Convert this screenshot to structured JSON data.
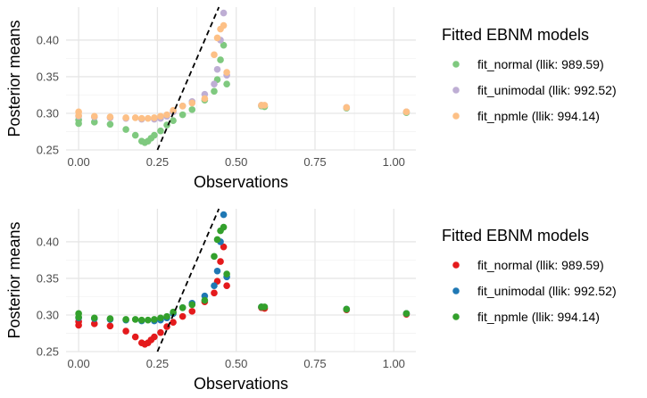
{
  "chart_data": [
    {
      "type": "scatter",
      "xlabel": "Observations",
      "ylabel": "Posterior means",
      "xlim": [
        -0.04,
        1.07
      ],
      "ylim": [
        0.25,
        0.445
      ],
      "x_ticks": [
        "0.00",
        "0.25",
        "0.50",
        "0.75",
        "1.00"
      ],
      "y_ticks": [
        "0.25",
        "0.30",
        "0.35",
        "0.40"
      ],
      "grid": true,
      "legend_title": "Fitted EBNM models",
      "legend_position": "right",
      "reference_line": {
        "style": "dashed",
        "color": "#000000",
        "x": [
          0.25,
          0.445
        ],
        "y": [
          0.25,
          0.445
        ]
      },
      "series": [
        {
          "name": "fit_normal (llik: 989.59)",
          "color": "#7fc97f",
          "x": [
            0.0,
            0.0,
            0.05,
            0.1,
            0.15,
            0.18,
            0.2,
            0.21,
            0.22,
            0.23,
            0.24,
            0.26,
            0.28,
            0.3,
            0.33,
            0.36,
            0.4,
            0.43,
            0.44,
            0.45,
            0.46,
            0.47,
            0.58,
            0.59,
            0.85,
            1.04
          ],
          "y": [
            0.286,
            0.291,
            0.288,
            0.285,
            0.278,
            0.27,
            0.262,
            0.26,
            0.262,
            0.266,
            0.27,
            0.276,
            0.284,
            0.29,
            0.298,
            0.305,
            0.318,
            0.33,
            0.346,
            0.373,
            0.393,
            0.34,
            0.31,
            0.309,
            0.307,
            0.301
          ]
        },
        {
          "name": "fit_unimodal (llik: 992.52)",
          "color": "#beaed4",
          "x": [
            0.0,
            0.05,
            0.1,
            0.15,
            0.2,
            0.24,
            0.26,
            0.28,
            0.3,
            0.33,
            0.36,
            0.4,
            0.43,
            0.44,
            0.45,
            0.46,
            0.47,
            0.58,
            0.85,
            1.04
          ],
          "y": [
            0.296,
            0.295,
            0.294,
            0.293,
            0.292,
            0.292,
            0.293,
            0.296,
            0.302,
            0.31,
            0.316,
            0.326,
            0.34,
            0.36,
            0.4,
            0.437,
            0.352,
            0.311,
            0.308,
            0.302
          ]
        },
        {
          "name": "fit_npmle (llik: 994.14)",
          "color": "#fdc086",
          "x": [
            0.0,
            0.0,
            0.05,
            0.1,
            0.15,
            0.18,
            0.2,
            0.22,
            0.24,
            0.26,
            0.28,
            0.3,
            0.33,
            0.36,
            0.4,
            0.43,
            0.44,
            0.45,
            0.46,
            0.47,
            0.58,
            0.59,
            0.85,
            1.04
          ],
          "y": [
            0.297,
            0.302,
            0.296,
            0.295,
            0.294,
            0.294,
            0.293,
            0.293,
            0.294,
            0.296,
            0.298,
            0.304,
            0.31,
            0.314,
            0.32,
            0.38,
            0.403,
            0.415,
            0.42,
            0.356,
            0.311,
            0.311,
            0.308,
            0.302
          ]
        }
      ]
    },
    {
      "type": "scatter",
      "xlabel": "Observations",
      "ylabel": "Posterior means",
      "xlim": [
        -0.04,
        1.07
      ],
      "ylim": [
        0.25,
        0.445
      ],
      "x_ticks": [
        "0.00",
        "0.25",
        "0.50",
        "0.75",
        "1.00"
      ],
      "y_ticks": [
        "0.25",
        "0.30",
        "0.35",
        "0.40"
      ],
      "grid": true,
      "legend_title": "Fitted EBNM models",
      "legend_position": "right",
      "reference_line": {
        "style": "dashed",
        "color": "#000000",
        "x": [
          0.25,
          0.445
        ],
        "y": [
          0.25,
          0.445
        ]
      },
      "series": [
        {
          "name": "fit_normal (llik: 989.59)",
          "color": "#e41a1c",
          "x": [
            0.0,
            0.0,
            0.05,
            0.1,
            0.15,
            0.18,
            0.2,
            0.21,
            0.22,
            0.23,
            0.24,
            0.26,
            0.28,
            0.3,
            0.33,
            0.36,
            0.4,
            0.43,
            0.44,
            0.45,
            0.46,
            0.47,
            0.58,
            0.59,
            0.85,
            1.04
          ],
          "y": [
            0.286,
            0.291,
            0.288,
            0.285,
            0.278,
            0.27,
            0.262,
            0.26,
            0.262,
            0.266,
            0.27,
            0.276,
            0.284,
            0.29,
            0.298,
            0.305,
            0.318,
            0.33,
            0.346,
            0.373,
            0.393,
            0.34,
            0.31,
            0.309,
            0.307,
            0.301
          ]
        },
        {
          "name": "fit_unimodal (llik: 992.52)",
          "color": "#1f78b4",
          "x": [
            0.0,
            0.05,
            0.1,
            0.15,
            0.2,
            0.24,
            0.26,
            0.28,
            0.3,
            0.33,
            0.36,
            0.4,
            0.43,
            0.44,
            0.45,
            0.46,
            0.47,
            0.58,
            0.85,
            1.04
          ],
          "y": [
            0.296,
            0.295,
            0.294,
            0.293,
            0.292,
            0.292,
            0.293,
            0.296,
            0.302,
            0.31,
            0.316,
            0.326,
            0.34,
            0.36,
            0.4,
            0.437,
            0.352,
            0.311,
            0.308,
            0.302
          ]
        },
        {
          "name": "fit_npmle (llik: 994.14)",
          "color": "#33a02c",
          "x": [
            0.0,
            0.0,
            0.05,
            0.1,
            0.15,
            0.18,
            0.2,
            0.22,
            0.24,
            0.26,
            0.28,
            0.3,
            0.33,
            0.36,
            0.4,
            0.43,
            0.44,
            0.45,
            0.46,
            0.47,
            0.58,
            0.59,
            0.85,
            1.04
          ],
          "y": [
            0.297,
            0.302,
            0.296,
            0.295,
            0.294,
            0.294,
            0.293,
            0.293,
            0.294,
            0.296,
            0.298,
            0.304,
            0.31,
            0.314,
            0.32,
            0.38,
            0.403,
            0.415,
            0.42,
            0.356,
            0.311,
            0.311,
            0.308,
            0.302
          ]
        }
      ]
    }
  ]
}
